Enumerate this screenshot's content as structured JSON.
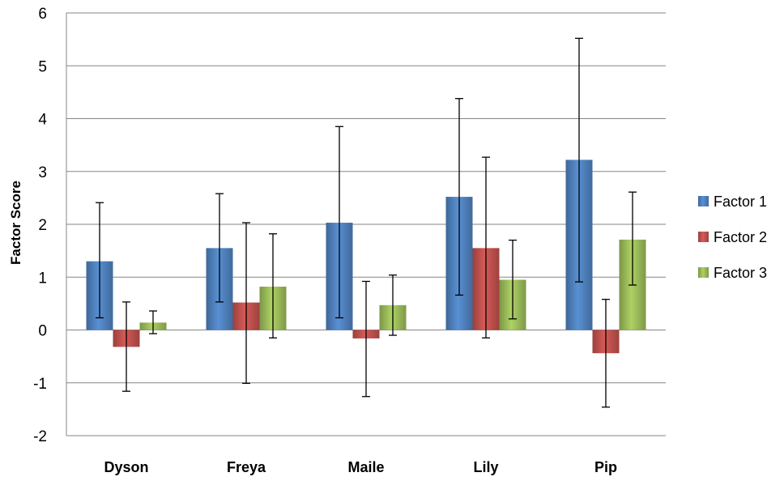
{
  "chart_data": {
    "type": "bar",
    "title": "",
    "xlabel": "",
    "ylabel": "Factor Score",
    "ylim": [
      -2,
      6
    ],
    "yticks": [
      -2,
      -1,
      0,
      1,
      2,
      3,
      4,
      5,
      6
    ],
    "grid": true,
    "legend_position": "right",
    "categories": [
      "Dyson",
      "Freya",
      "Maile",
      "Lily",
      "Pip"
    ],
    "series": [
      {
        "name": "Factor 1",
        "color": "#4F81BD",
        "values": [
          1.3,
          1.55,
          2.03,
          2.52,
          3.22
        ],
        "err_low": [
          0.23,
          0.53,
          0.23,
          0.66,
          0.91
        ],
        "err_high": [
          2.41,
          2.58,
          3.85,
          4.38,
          5.52
        ]
      },
      {
        "name": "Factor 2",
        "color": "#C0504D",
        "values": [
          -0.32,
          0.52,
          -0.16,
          1.55,
          -0.44
        ],
        "err_low": [
          -1.16,
          -1.01,
          -1.26,
          -0.15,
          -1.46
        ],
        "err_high": [
          0.53,
          2.03,
          0.92,
          3.27,
          0.58
        ]
      },
      {
        "name": "Factor 3",
        "color": "#9BBB59",
        "values": [
          0.14,
          0.82,
          0.47,
          0.95,
          1.71
        ],
        "err_low": [
          -0.07,
          -0.15,
          -0.1,
          0.21,
          0.85
        ],
        "err_high": [
          0.36,
          1.82,
          1.04,
          1.7,
          2.61
        ]
      }
    ]
  }
}
